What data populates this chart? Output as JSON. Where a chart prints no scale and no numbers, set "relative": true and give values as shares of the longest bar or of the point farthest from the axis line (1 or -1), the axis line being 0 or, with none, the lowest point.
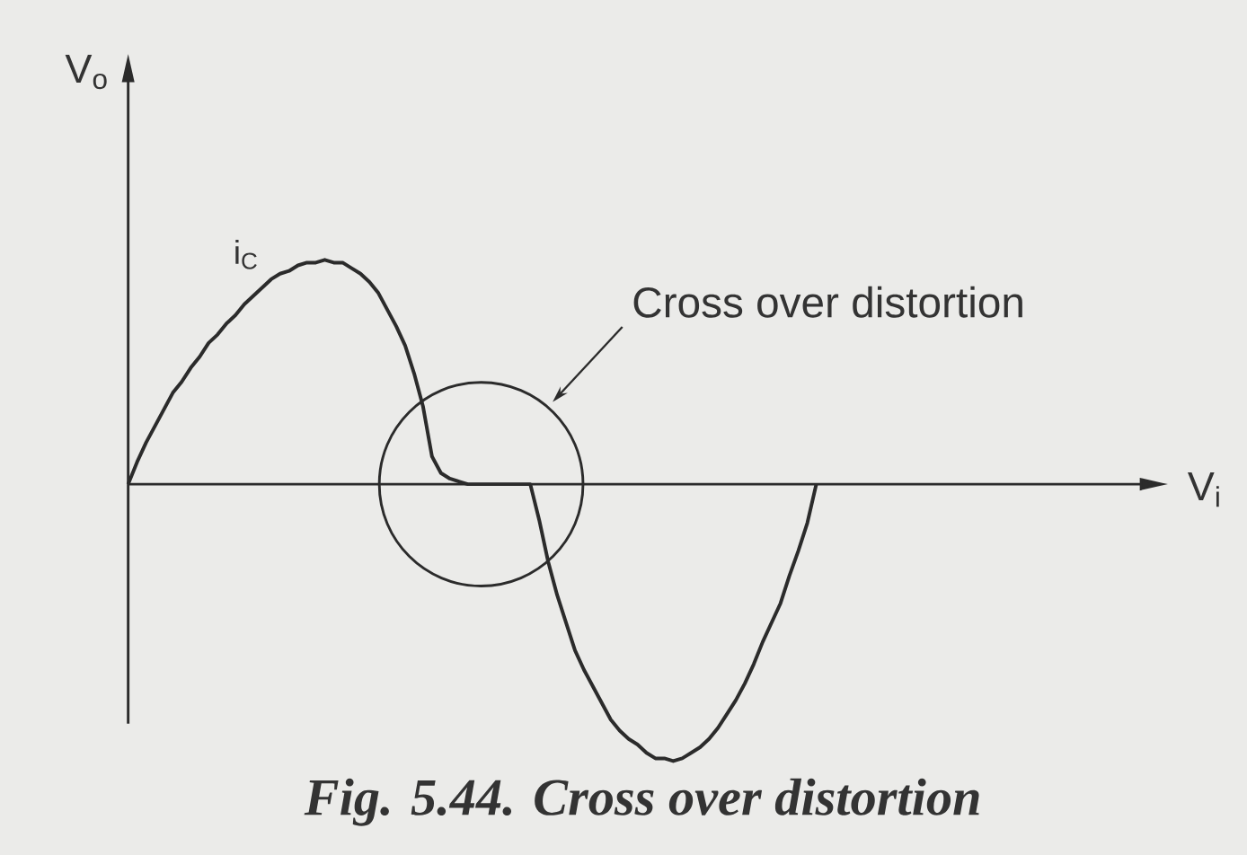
{
  "chart_data": {
    "type": "line",
    "relative": true,
    "title": "Fig. 5.44. Cross over distortion",
    "ylabel": "V$_{o}$",
    "categories": [
      null,
      null,
      null,
      null,
      null,
      null,
      null,
      null,
      null,
      null,
      null,
      null,
      null,
      null,
      null,
      null,
      null,
      null,
      null,
      null,
      null,
      null,
      null,
      null,
      null,
      null,
      null,
      null,
      null,
      null,
      null,
      null,
      null,
      null,
      null,
      null,
      null,
      null,
      null,
      null,
      null,
      null,
      null,
      null,
      null,
      null,
      null,
      null,
      null,
      null,
      null,
      null,
      null,
      null,
      null,
      null,
      null,
      null,
      null,
      null,
      null,
      null,
      null,
      null,
      null,
      null,
      null,
      null,
      null,
      null,
      null,
      null,
      null,
      null,
      null,
      null,
      null,
      null
    ],
    "series": [
      {
        "name": "i$_{C}$",
        "color": "#2b2b2b",
        "values": [
          0,
          0.08,
          0.15,
          0.21,
          0.27,
          0.33,
          0.37,
          0.42,
          0.46,
          0.51,
          0.54,
          0.58,
          0.61,
          0.65,
          0.68,
          0.71,
          0.74,
          0.76,
          0.77,
          0.79,
          0.8,
          0.8,
          0.81,
          0.8,
          0.8,
          0.78,
          0.76,
          0.73,
          0.69,
          0.63,
          0.57,
          0.5,
          0.4,
          0.28,
          0.1,
          0.04,
          0.02,
          0.01,
          0,
          0,
          0,
          0,
          0,
          0,
          0,
          0,
          -0.13,
          -0.28,
          -0.4,
          -0.5,
          -0.6,
          -0.67,
          -0.73,
          -0.79,
          -0.85,
          -0.89,
          -0.92,
          -0.94,
          -0.97,
          -0.99,
          -0.99,
          -1,
          -0.99,
          -0.97,
          -0.95,
          -0.92,
          -0.88,
          -0.83,
          -0.78,
          -0.72,
          -0.65,
          -0.57,
          -0.5,
          -0.43,
          -0.33,
          -0.24,
          -0.14,
          0
        ]
      }
    ],
    "annotations": [
      "Cross over distortion",
      "V$_{i}$"
    ],
    "line_style": "solid"
  }
}
